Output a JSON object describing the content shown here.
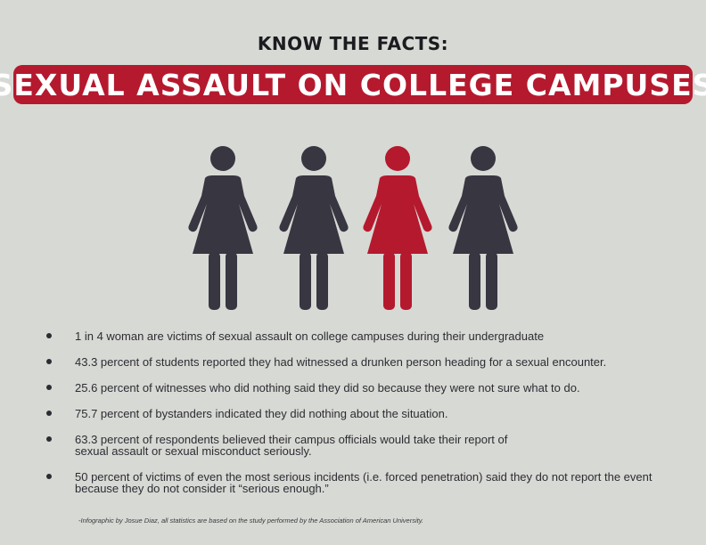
{
  "header": {
    "kicker": "KNOW THE FACTS:",
    "title": "SEXUAL ASSAULT ON COLLEGE CAMPUSES"
  },
  "colors": {
    "background": "#d7d9d4",
    "accent": "#b5192e",
    "figure_dark": "#373641",
    "text": "#2d2c33"
  },
  "figures": {
    "icon": "woman-icon",
    "total": 4,
    "highlighted_index": 2
  },
  "facts": [
    {
      "lines": [
        "1 in 4 woman are victims of sexual assault on college campuses during their undergraduate"
      ]
    },
    {
      "lines": [
        "43.3 percent of students reported they had witnessed a drunken person heading for a sexual encounter."
      ]
    },
    {
      "lines": [
        "25.6 percent of witnesses who did nothing said they did so because they were not sure what to do."
      ]
    },
    {
      "lines": [
        "75.7 percent of bystanders indicated they did nothing about the situation."
      ]
    },
    {
      "lines": [
        "63.3 percent of respondents believed their campus officials would take their report of",
        "sexual assault or sexual misconduct seriously."
      ]
    },
    {
      "lines": [
        "50 percent of victims of even the most serious incidents (i.e. forced penetration) said they do not report the event",
        "because they do not consider it “serious enough.”"
      ]
    }
  ],
  "credit": "-Infographic by Josue Diaz, all statistics are based on the study performed by the Association of American University."
}
